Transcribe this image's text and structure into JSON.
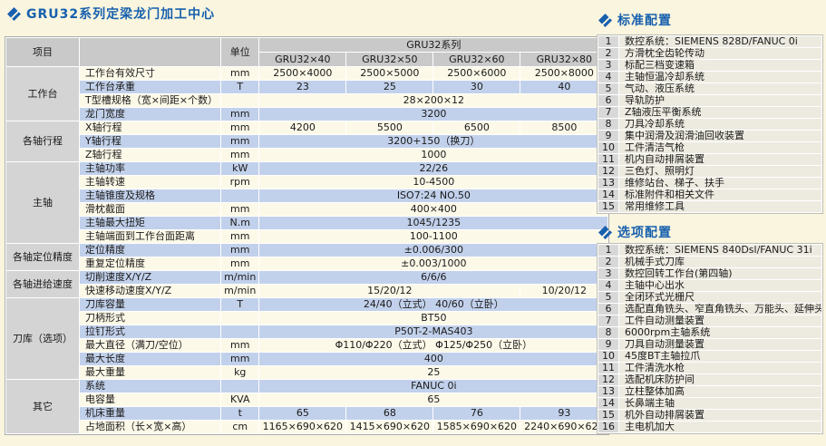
{
  "page_title": "GRU32系列定梁龙门加工中心",
  "colors": {
    "page_background": "#FAF5DE",
    "title_blue": "#1760AE",
    "row_cream": "#FDF9E8",
    "row_blue": "#C2D1EB",
    "header_gray": "#C9C9C9",
    "group_gray": "#D4D4D4"
  },
  "spec_table": {
    "header": {
      "item_label": "项目",
      "unit_label": "单位",
      "series_label": "GRU32系列",
      "models": [
        "GRU32×40",
        "GRU32×50",
        "GRU32×60",
        "GRU32×80"
      ]
    },
    "groups": [
      {
        "label": "工作台",
        "rows": [
          {
            "name": "工作台有效尺寸",
            "unit": "mm",
            "values": [
              "2500×4000",
              "2500×5000",
              "2500×6000",
              "2500×8000"
            ]
          },
          {
            "name": "工作台承重",
            "unit": "T",
            "values": [
              "23",
              "25",
              "30",
              "40"
            ]
          },
          {
            "name": "T型槽规格（宽×间距×个数）",
            "unit": "",
            "values": [
              "28×200×12"
            ]
          },
          {
            "name": "龙门宽度",
            "unit": "mm",
            "values": [
              "3200"
            ]
          }
        ]
      },
      {
        "label": "各轴行程",
        "rows": [
          {
            "name": "X轴行程",
            "unit": "mm",
            "values": [
              "4200",
              "5500",
              "6500",
              "8500"
            ]
          },
          {
            "name": "Y轴行程",
            "unit": "mm",
            "values": [
              "3200+150（换刀）"
            ]
          },
          {
            "name": "Z轴行程",
            "unit": "mm",
            "values": [
              "1000"
            ]
          }
        ]
      },
      {
        "label": "主轴",
        "rows": [
          {
            "name": "主轴功率",
            "unit": "kW",
            "values": [
              "22/26"
            ]
          },
          {
            "name": "主轴转速",
            "unit": "rpm",
            "values": [
              "10-4500"
            ]
          },
          {
            "name": "主轴锥度及规格",
            "unit": "",
            "values": [
              "ISO7:24 NO.50"
            ]
          },
          {
            "name": "滑枕截面",
            "unit": "mm",
            "values": [
              "400×400"
            ]
          },
          {
            "name": "主轴最大扭矩",
            "unit": "N.m",
            "values": [
              "1045/1235"
            ]
          },
          {
            "name": "主轴端面到工作台面距离",
            "unit": "mm",
            "values": [
              "100-1100"
            ]
          }
        ]
      },
      {
        "label": "各轴定位精度",
        "rows": [
          {
            "name": "定位精度",
            "unit": "mm",
            "values": [
              "±0.006/300"
            ]
          },
          {
            "name": "重复定位精度",
            "unit": "mm",
            "values": [
              "±0.003/1000"
            ]
          }
        ]
      },
      {
        "label": "各轴进给速度",
        "rows": [
          {
            "name": "切削速度X/Y/Z",
            "unit": "m/min",
            "values": [
              "6/6/6"
            ]
          },
          {
            "name": "快速移动速度X/Y/Z",
            "unit": "m/min",
            "values": [
              "15/20/12",
              "10/20/12"
            ],
            "spans": [
              3,
              1
            ]
          }
        ]
      },
      {
        "label": "刀库（选项）",
        "rows": [
          {
            "name": "刀库容量",
            "unit": "T",
            "values": [
              "24/40（立式） 40/60（立卧）"
            ]
          },
          {
            "name": "刀柄形式",
            "unit": "",
            "values": [
              "BT50"
            ]
          },
          {
            "name": "拉钉形式",
            "unit": "",
            "values": [
              "P50T-2-MAS403"
            ]
          },
          {
            "name": "最大直径（满刀/空位）",
            "unit": "mm",
            "values": [
              "Φ110/Φ220（立式） Φ125/Φ250（立卧）"
            ]
          },
          {
            "name": "最大长度",
            "unit": "mm",
            "values": [
              "400"
            ]
          },
          {
            "name": "最大重量",
            "unit": "kg",
            "values": [
              "25"
            ]
          }
        ]
      },
      {
        "label": "其它",
        "rows": [
          {
            "name": "系统",
            "unit": "",
            "values": [
              "FANUC 0i"
            ]
          },
          {
            "name": "电容量",
            "unit": "KVA",
            "values": [
              "65"
            ]
          },
          {
            "name": "机床重量",
            "unit": "t",
            "values": [
              "65",
              "68",
              "76",
              "93"
            ]
          },
          {
            "name": "占地面积（长×宽×高）",
            "unit": "cm",
            "values": [
              "1165×690×620",
              "1415×690×620",
              "1585×690×620",
              "2240×690×620"
            ]
          }
        ]
      }
    ]
  },
  "standard_config": {
    "title": "标准配置",
    "items": [
      "数控系统：SIEMENS 828D/FANUC 0i",
      "方滑枕全齿轮传动",
      "标配三档变速箱",
      "主轴恒温冷却系统",
      "气动、液压系统",
      "导轨防护",
      "Z轴液压平衡系统",
      "刀具冷却系统",
      "集中润滑及润滑油回收装置",
      "工件清洁气枪",
      "机内自动排屑装置",
      "三色灯、照明灯",
      "维修站台、梯子、扶手",
      "标准附件和相关文件",
      "常用维修工具"
    ]
  },
  "optional_config": {
    "title": "选项配置",
    "items": [
      "数控系统：SIEMENS 840Dsl/FANUC 31i",
      "机械手式刀库",
      "数控回转工作台(第四轴)",
      "主轴中心出水",
      "全闭环式光栅尺",
      "选配直角铣头、窄直角铣头、万能头、延伸头附件",
      "工件自动测量装置",
      "6000rpm主轴系统",
      "刀具自动测量装置",
      "45度BT主轴拉爪",
      "工件清洗水枪",
      "选配机床防护间",
      "立柱整体加高",
      "长鼻端主轴",
      "机外自动排屑装置",
      "主电机加大"
    ]
  }
}
